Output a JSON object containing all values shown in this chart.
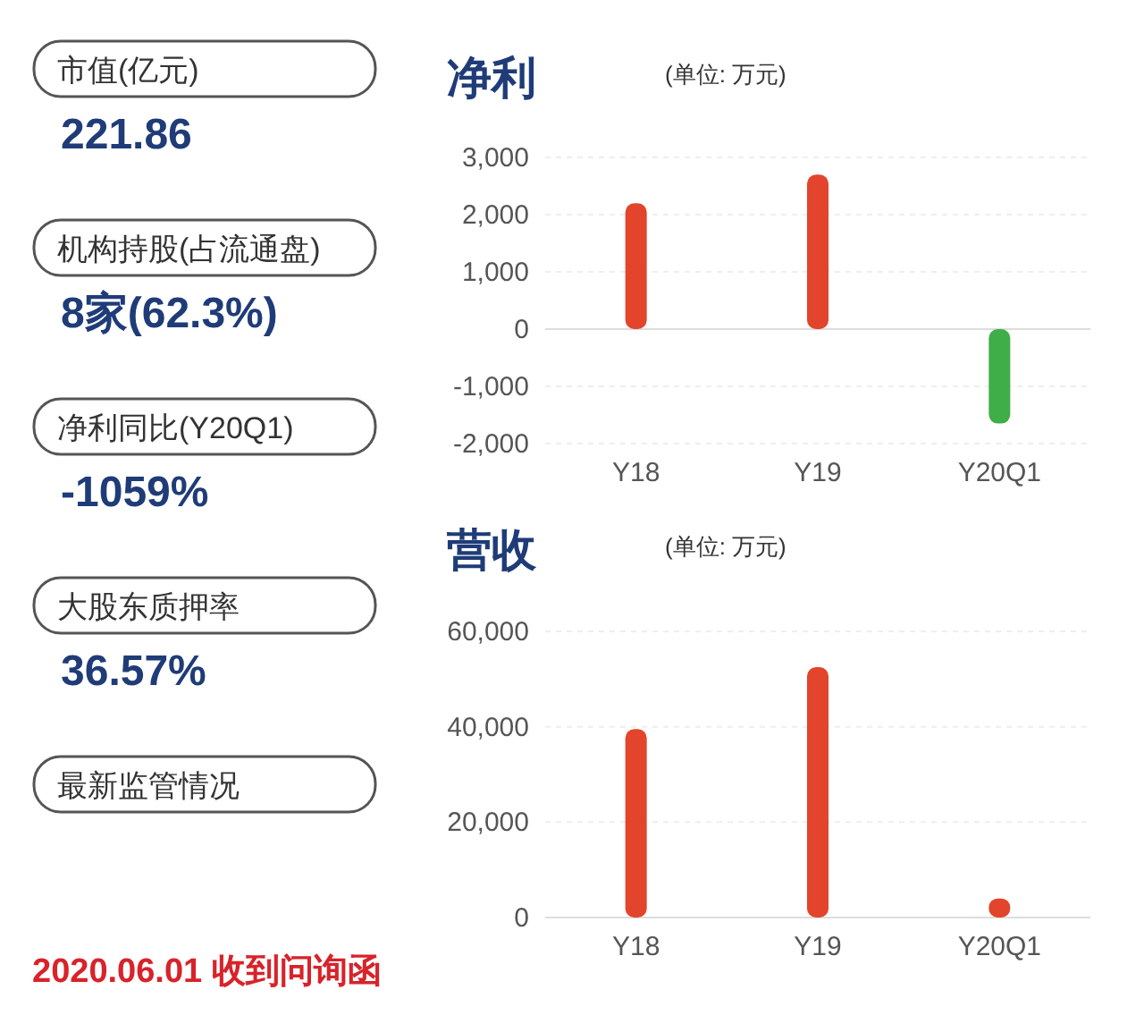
{
  "chart_data": [
    {
      "type": "other",
      "annotations": [
        "市值(亿元)",
        "221.86",
        "机构持股(占流通盘)",
        "8家(62.3%)",
        "净利同比(Y20Q1)",
        "-1059%",
        "大股东质押率",
        "36.57%",
        "最新监管情况",
        "2020.06.01 收到问询函"
      ]
    },
    {
      "type": "bar",
      "title": "净利",
      "subtitle": "(单位: 万元)",
      "categories": [
        "Y18",
        "Y19",
        "Y20Q1"
      ],
      "values": [
        2200,
        2700,
        -1650
      ],
      "colors": [
        "#e2452b",
        "#e2452b",
        "#3fae49"
      ],
      "ylim": [
        -2000,
        3000
      ],
      "yticks": [
        {
          "value": -2000,
          "label": "-2,000"
        },
        {
          "value": -1000,
          "label": "-1,000"
        },
        0,
        {
          "value": 1000,
          "label": "1,000"
        },
        {
          "value": 2000,
          "label": "2,000"
        },
        {
          "value": 3000,
          "label": "3,000"
        }
      ],
      "grid": "y"
    },
    {
      "type": "bar",
      "title": "营收",
      "subtitle": "(单位: 万元)",
      "categories": [
        "Y18",
        "Y19",
        "Y20Q1"
      ],
      "values": [
        39500,
        52500,
        4000
      ],
      "colors": [
        "#e2452b",
        "#e2452b",
        "#e2452b"
      ],
      "ylim": [
        0,
        60000
      ],
      "yticks": [
        0,
        {
          "value": 20000,
          "label": "20,000"
        },
        {
          "value": 40000,
          "label": "40,000"
        },
        {
          "value": 60000,
          "label": "60,000"
        }
      ],
      "grid": "y"
    }
  ]
}
